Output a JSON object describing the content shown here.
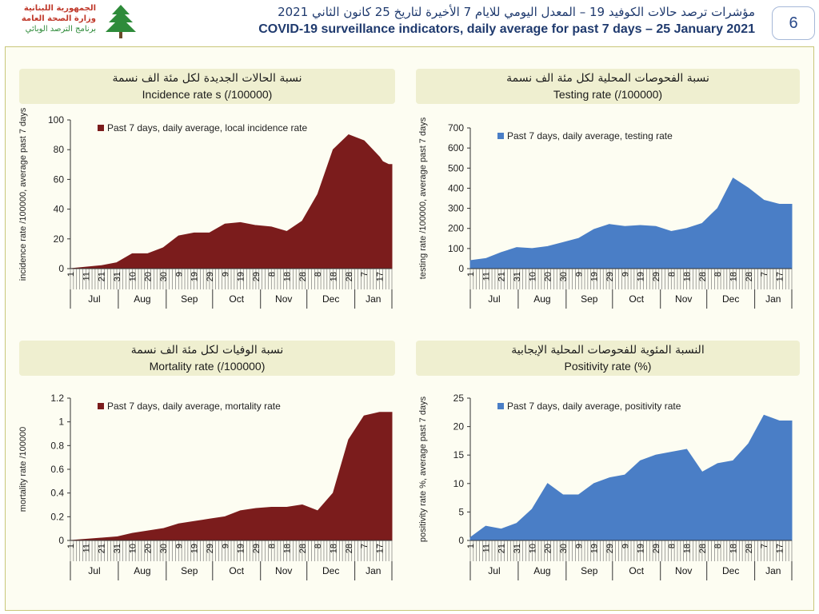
{
  "header": {
    "logo_lines": [
      "الجمهورية اللبنانية",
      "وزارة الصحة العامة",
      "برنامج الترصد الوبائي"
    ],
    "title_ar": "مؤشرات ترصد حالات الكوفيد 19 – المعدل اليومي للايام 7 الأخيرة لتاريخ 25 كانون الثاني 2021",
    "title_en": "COVID-19 surveillance indicators, daily average for past 7 days – 25 January 2021",
    "page_number": "6"
  },
  "colors": {
    "maroon": "#7b1c1c",
    "blue": "#4a7ec6",
    "title_blue": "#1f3a6e"
  },
  "chart_data": [
    {
      "type": "area",
      "title_ar": "نسبة الحالات الجديدة لكل مئة الف نسمة",
      "title_en": "Incidence rate s  (/100000)",
      "ylabel": "incidence rate /100000, average past 7 days",
      "legend": "Past 7 days, daily average, local incidence rate",
      "color": "#7b1c1c",
      "ylim": [
        0,
        100
      ],
      "yticks": [
        "0",
        "20",
        "40",
        "60",
        "80",
        "100"
      ],
      "x_tick_labels": [
        "1",
        "11",
        "21",
        "31",
        "10",
        "20",
        "30",
        "9",
        "19",
        "29",
        "9",
        "19",
        "29",
        "8",
        "18",
        "28",
        "8",
        "18",
        "28",
        "7",
        "17"
      ],
      "months": [
        "Jul",
        "Aug",
        "Sep",
        "Oct",
        "Nov",
        "Dec",
        "Jan"
      ],
      "series": [
        {
          "x": [
            0,
            10,
            20,
            30,
            40,
            50,
            60,
            70,
            80,
            90,
            100,
            110,
            120,
            130,
            140,
            150,
            160,
            170,
            180,
            190,
            200,
            202,
            206,
            208
          ],
          "values": [
            0,
            1,
            2,
            4,
            10,
            10,
            14,
            22,
            24,
            24,
            30,
            31,
            29,
            28,
            25,
            32,
            50,
            80,
            90,
            86,
            75,
            72,
            70,
            70
          ]
        }
      ]
    },
    {
      "type": "area",
      "title_ar": "نسبة الفحوصات المحلية لكل مئة الف نسمة",
      "title_en": "Testing rate (/100000)",
      "ylabel": "testing rate /100000, average past 7 days",
      "legend": "Past 7 days, daily average, testing rate",
      "color": "#4a7ec6",
      "ylim": [
        0,
        700
      ],
      "yticks": [
        "0",
        "100",
        "200",
        "300",
        "400",
        "500",
        "600",
        "700"
      ],
      "x_tick_labels": [
        "1",
        "11",
        "21",
        "31",
        "10",
        "20",
        "30",
        "9",
        "19",
        "29",
        "9",
        "19",
        "29",
        "8",
        "18",
        "28",
        "8",
        "18",
        "28",
        "7",
        "17"
      ],
      "months": [
        "Jul",
        "Aug",
        "Sep",
        "Oct",
        "Nov",
        "Dec",
        "Jan"
      ],
      "series": [
        {
          "x": [
            0,
            10,
            20,
            30,
            40,
            50,
            60,
            70,
            80,
            90,
            100,
            110,
            120,
            130,
            140,
            150,
            160,
            170,
            180,
            190,
            200,
            202,
            206,
            208
          ],
          "values": [
            40,
            50,
            80,
            105,
            100,
            110,
            130,
            150,
            195,
            220,
            210,
            215,
            210,
            185,
            200,
            225,
            300,
            450,
            400,
            340,
            320,
            320,
            320,
            320
          ]
        }
      ]
    },
    {
      "type": "area",
      "title_ar": "نسبة الوفيات لكل مئة الف نسمة",
      "title_en": "Mortality rate (/100000)",
      "ylabel": "mortality rate /100000",
      "legend": "Past 7 days, daily average, mortality rate",
      "color": "#7b1c1c",
      "ylim": [
        0,
        1.2
      ],
      "yticks": [
        "0",
        "0.2",
        "0.4",
        "0.6",
        "0.8",
        "1",
        "1.2"
      ],
      "x_tick_labels": [
        "1",
        "11",
        "21",
        "31",
        "10",
        "20",
        "30",
        "9",
        "19",
        "29",
        "9",
        "19",
        "29",
        "8",
        "18",
        "28",
        "8",
        "18",
        "28",
        "7",
        "17"
      ],
      "months": [
        "Jul",
        "Aug",
        "Sep",
        "Oct",
        "Nov",
        "Dec",
        "Jan"
      ],
      "series": [
        {
          "x": [
            0,
            10,
            20,
            30,
            40,
            50,
            60,
            70,
            80,
            90,
            100,
            110,
            120,
            130,
            140,
            150,
            160,
            170,
            180,
            190,
            200,
            202,
            206,
            208
          ],
          "values": [
            0,
            0.01,
            0.02,
            0.03,
            0.06,
            0.08,
            0.1,
            0.14,
            0.16,
            0.18,
            0.2,
            0.25,
            0.27,
            0.28,
            0.28,
            0.3,
            0.25,
            0.4,
            0.85,
            1.05,
            1.08,
            1.08,
            1.08,
            1.08
          ]
        }
      ]
    },
    {
      "type": "area",
      "title_ar": "النسبة المئوية للفحوصات المحلية الإيجابية",
      "title_en": "Positivity rate (%)",
      "ylabel": "positivity rate %, average past 7 days",
      "legend": "Past 7 days, daily average, positivity rate",
      "color": "#4a7ec6",
      "ylim": [
        0,
        25
      ],
      "yticks": [
        "0",
        "5",
        "10",
        "15",
        "20",
        "25"
      ],
      "x_tick_labels": [
        "1",
        "11",
        "21",
        "31",
        "10",
        "20",
        "30",
        "9",
        "19",
        "29",
        "9",
        "19",
        "29",
        "8",
        "18",
        "28",
        "8",
        "18",
        "28",
        "7",
        "17"
      ],
      "months": [
        "Jul",
        "Aug",
        "Sep",
        "Oct",
        "Nov",
        "Dec",
        "Jan"
      ],
      "series": [
        {
          "x": [
            0,
            10,
            20,
            30,
            40,
            50,
            60,
            70,
            80,
            90,
            100,
            110,
            120,
            130,
            140,
            150,
            160,
            170,
            180,
            190,
            200,
            202,
            206,
            208
          ],
          "values": [
            0.5,
            2.5,
            2,
            3,
            5.5,
            10,
            8,
            8,
            10,
            11,
            11.5,
            14,
            15,
            15.5,
            16,
            12,
            13.5,
            14,
            17,
            22,
            21,
            21,
            21,
            21
          ]
        }
      ]
    }
  ]
}
